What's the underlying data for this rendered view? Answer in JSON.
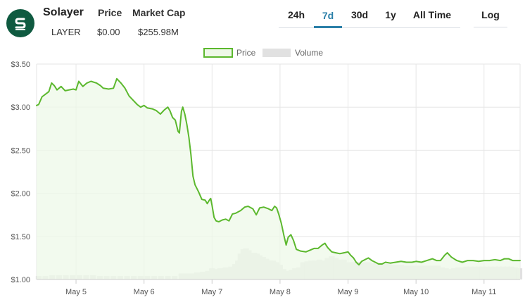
{
  "header": {
    "coin_name": "Solayer",
    "symbol": "LAYER",
    "price_label": "Price",
    "price_value": "$0.00",
    "market_cap_label": "Market Cap",
    "market_cap_value": "$255.98M"
  },
  "tabs": [
    {
      "label": "24h",
      "active": false
    },
    {
      "label": "7d",
      "active": true
    },
    {
      "label": "30d",
      "active": false
    },
    {
      "label": "1y",
      "active": false
    },
    {
      "label": "All Time",
      "active": false
    }
  ],
  "log_label": "Log",
  "colors": {
    "price_line": "#5cb82e",
    "price_fill": "#eef8e8",
    "volume_bar": "#e1e1e1",
    "active_tab": "#2a7fa8",
    "logo_bg": "#0f5a40"
  },
  "chart_data": {
    "type": "line",
    "legend": [
      "Price",
      "Volume"
    ],
    "legend_position": "top-center",
    "grid": true,
    "ylim": [
      1.0,
      3.5
    ],
    "y_ticks": [
      "$1.00",
      "$1.50",
      "$2.00",
      "$2.50",
      "$3.00",
      "$3.50"
    ],
    "x_range": [
      4.42,
      11.53
    ],
    "x_ticks": [
      "May 5",
      "May 6",
      "May 7",
      "May 8",
      "May 9",
      "May 10",
      "May 11"
    ],
    "x_tick_values": [
      5,
      6,
      7,
      8,
      9,
      10,
      11
    ],
    "price": [
      [
        4.42,
        3.02
      ],
      [
        4.45,
        3.03
      ],
      [
        4.5,
        3.12
      ],
      [
        4.55,
        3.15
      ],
      [
        4.6,
        3.18
      ],
      [
        4.64,
        3.28
      ],
      [
        4.68,
        3.25
      ],
      [
        4.72,
        3.2
      ],
      [
        4.78,
        3.24
      ],
      [
        4.84,
        3.19
      ],
      [
        4.9,
        3.2
      ],
      [
        4.96,
        3.21
      ],
      [
        5.0,
        3.2
      ],
      [
        5.04,
        3.3
      ],
      [
        5.1,
        3.24
      ],
      [
        5.16,
        3.28
      ],
      [
        5.22,
        3.3
      ],
      [
        5.3,
        3.28
      ],
      [
        5.36,
        3.25
      ],
      [
        5.4,
        3.22
      ],
      [
        5.48,
        3.21
      ],
      [
        5.55,
        3.22
      ],
      [
        5.6,
        3.33
      ],
      [
        5.66,
        3.28
      ],
      [
        5.72,
        3.22
      ],
      [
        5.78,
        3.13
      ],
      [
        5.84,
        3.08
      ],
      [
        5.9,
        3.03
      ],
      [
        5.95,
        3.0
      ],
      [
        6.0,
        3.02
      ],
      [
        6.05,
        2.99
      ],
      [
        6.12,
        2.98
      ],
      [
        6.18,
        2.96
      ],
      [
        6.24,
        2.92
      ],
      [
        6.3,
        2.97
      ],
      [
        6.35,
        3.0
      ],
      [
        6.38,
        2.96
      ],
      [
        6.42,
        2.88
      ],
      [
        6.46,
        2.85
      ],
      [
        6.5,
        2.72
      ],
      [
        6.52,
        2.7
      ],
      [
        6.55,
        2.95
      ],
      [
        6.57,
        3.0
      ],
      [
        6.6,
        2.92
      ],
      [
        6.63,
        2.8
      ],
      [
        6.66,
        2.65
      ],
      [
        6.69,
        2.45
      ],
      [
        6.72,
        2.2
      ],
      [
        6.75,
        2.1
      ],
      [
        6.8,
        2.02
      ],
      [
        6.85,
        1.93
      ],
      [
        6.9,
        1.92
      ],
      [
        6.93,
        1.88
      ],
      [
        6.96,
        1.92
      ],
      [
        6.98,
        1.94
      ],
      [
        7.0,
        1.86
      ],
      [
        7.03,
        1.72
      ],
      [
        7.06,
        1.68
      ],
      [
        7.1,
        1.67
      ],
      [
        7.15,
        1.69
      ],
      [
        7.2,
        1.7
      ],
      [
        7.25,
        1.68
      ],
      [
        7.3,
        1.76
      ],
      [
        7.35,
        1.77
      ],
      [
        7.42,
        1.8
      ],
      [
        7.48,
        1.84
      ],
      [
        7.53,
        1.85
      ],
      [
        7.6,
        1.82
      ],
      [
        7.65,
        1.75
      ],
      [
        7.7,
        1.83
      ],
      [
        7.76,
        1.84
      ],
      [
        7.83,
        1.82
      ],
      [
        7.88,
        1.8
      ],
      [
        7.92,
        1.85
      ],
      [
        7.95,
        1.83
      ],
      [
        7.98,
        1.76
      ],
      [
        8.02,
        1.65
      ],
      [
        8.06,
        1.5
      ],
      [
        8.09,
        1.4
      ],
      [
        8.12,
        1.49
      ],
      [
        8.16,
        1.52
      ],
      [
        8.2,
        1.45
      ],
      [
        8.24,
        1.35
      ],
      [
        8.3,
        1.33
      ],
      [
        8.38,
        1.32
      ],
      [
        8.44,
        1.34
      ],
      [
        8.5,
        1.36
      ],
      [
        8.56,
        1.36
      ],
      [
        8.62,
        1.4
      ],
      [
        8.66,
        1.42
      ],
      [
        8.7,
        1.37
      ],
      [
        8.76,
        1.32
      ],
      [
        8.82,
        1.31
      ],
      [
        8.88,
        1.3
      ],
      [
        8.94,
        1.31
      ],
      [
        9.0,
        1.32
      ],
      [
        9.04,
        1.28
      ],
      [
        9.08,
        1.25
      ],
      [
        9.12,
        1.2
      ],
      [
        9.16,
        1.17
      ],
      [
        9.2,
        1.21
      ],
      [
        9.25,
        1.23
      ],
      [
        9.3,
        1.25
      ],
      [
        9.35,
        1.22
      ],
      [
        9.4,
        1.2
      ],
      [
        9.45,
        1.18
      ],
      [
        9.5,
        1.18
      ],
      [
        9.55,
        1.2
      ],
      [
        9.62,
        1.19
      ],
      [
        9.7,
        1.2
      ],
      [
        9.78,
        1.21
      ],
      [
        9.86,
        1.2
      ],
      [
        9.94,
        1.2
      ],
      [
        10.0,
        1.21
      ],
      [
        10.08,
        1.2
      ],
      [
        10.16,
        1.22
      ],
      [
        10.24,
        1.24
      ],
      [
        10.3,
        1.22
      ],
      [
        10.36,
        1.22
      ],
      [
        10.42,
        1.28
      ],
      [
        10.46,
        1.31
      ],
      [
        10.52,
        1.26
      ],
      [
        10.6,
        1.22
      ],
      [
        10.68,
        1.2
      ],
      [
        10.76,
        1.22
      ],
      [
        10.84,
        1.22
      ],
      [
        10.92,
        1.21
      ],
      [
        11.0,
        1.22
      ],
      [
        11.08,
        1.22
      ],
      [
        11.16,
        1.23
      ],
      [
        11.24,
        1.22
      ],
      [
        11.3,
        1.24
      ],
      [
        11.36,
        1.24
      ],
      [
        11.42,
        1.22
      ],
      [
        11.5,
        1.22
      ],
      [
        11.53,
        1.22
      ]
    ],
    "volume_units": "price-axis equivalent (volume axis unlabeled)",
    "volume": [
      [
        4.45,
        1.04
      ],
      [
        4.55,
        1.04
      ],
      [
        4.65,
        1.05
      ],
      [
        4.75,
        1.05
      ],
      [
        4.85,
        1.05
      ],
      [
        4.95,
        1.05
      ],
      [
        5.05,
        1.05
      ],
      [
        5.15,
        1.05
      ],
      [
        5.25,
        1.05
      ],
      [
        5.35,
        1.04
      ],
      [
        5.45,
        1.04
      ],
      [
        5.55,
        1.04
      ],
      [
        5.65,
        1.04
      ],
      [
        5.75,
        1.04
      ],
      [
        5.85,
        1.04
      ],
      [
        5.95,
        1.04
      ],
      [
        6.05,
        1.04
      ],
      [
        6.15,
        1.04
      ],
      [
        6.25,
        1.04
      ],
      [
        6.35,
        1.04
      ],
      [
        6.45,
        1.04
      ],
      [
        6.55,
        1.07
      ],
      [
        6.62,
        1.07
      ],
      [
        6.7,
        1.07
      ],
      [
        6.78,
        1.08
      ],
      [
        6.86,
        1.09
      ],
      [
        6.94,
        1.1
      ],
      [
        7.0,
        1.13
      ],
      [
        7.05,
        1.12
      ],
      [
        7.12,
        1.13
      ],
      [
        7.2,
        1.14
      ],
      [
        7.28,
        1.15
      ],
      [
        7.34,
        1.18
      ],
      [
        7.38,
        1.22
      ],
      [
        7.42,
        1.3
      ],
      [
        7.46,
        1.35
      ],
      [
        7.5,
        1.36
      ],
      [
        7.54,
        1.34
      ],
      [
        7.58,
        1.3
      ],
      [
        7.62,
        1.31
      ],
      [
        7.66,
        1.3
      ],
      [
        7.7,
        1.28
      ],
      [
        7.75,
        1.26
      ],
      [
        7.8,
        1.24
      ],
      [
        7.85,
        1.22
      ],
      [
        7.9,
        1.22
      ],
      [
        7.95,
        1.2
      ],
      [
        8.0,
        1.17
      ],
      [
        8.05,
        1.12
      ],
      [
        8.09,
        1.08
      ],
      [
        8.13,
        1.1
      ],
      [
        8.17,
        1.11
      ],
      [
        8.22,
        1.13
      ],
      [
        8.28,
        1.14
      ],
      [
        8.34,
        1.2
      ],
      [
        8.4,
        1.21
      ],
      [
        8.46,
        1.22
      ],
      [
        8.52,
        1.22
      ],
      [
        8.58,
        1.23
      ],
      [
        8.64,
        1.22
      ],
      [
        8.7,
        1.25
      ],
      [
        8.76,
        1.27
      ],
      [
        8.82,
        1.25
      ],
      [
        8.88,
        1.23
      ],
      [
        8.94,
        1.23
      ],
      [
        9.0,
        1.2
      ],
      [
        9.06,
        1.2
      ],
      [
        9.12,
        1.2
      ],
      [
        9.18,
        1.2
      ],
      [
        9.24,
        1.2
      ],
      [
        9.3,
        1.2
      ],
      [
        9.36,
        1.19
      ],
      [
        9.42,
        1.18
      ],
      [
        9.48,
        1.18
      ],
      [
        9.54,
        1.18
      ],
      [
        9.6,
        1.18
      ],
      [
        9.66,
        1.17
      ],
      [
        9.72,
        1.17
      ],
      [
        9.78,
        1.17
      ],
      [
        9.84,
        1.16
      ],
      [
        9.9,
        1.16
      ],
      [
        9.96,
        1.16
      ],
      [
        10.02,
        1.16
      ],
      [
        10.08,
        1.16
      ],
      [
        10.14,
        1.16
      ],
      [
        10.2,
        1.16
      ],
      [
        10.26,
        1.16
      ],
      [
        10.32,
        1.16
      ],
      [
        10.38,
        1.14
      ],
      [
        10.44,
        1.13
      ],
      [
        10.5,
        1.12
      ],
      [
        10.56,
        1.13
      ],
      [
        10.62,
        1.14
      ],
      [
        10.68,
        1.14
      ],
      [
        10.74,
        1.15
      ],
      [
        10.8,
        1.15
      ],
      [
        10.86,
        1.15
      ],
      [
        10.92,
        1.15
      ],
      [
        10.98,
        1.15
      ],
      [
        11.04,
        1.15
      ],
      [
        11.1,
        1.15
      ],
      [
        11.16,
        1.15
      ],
      [
        11.22,
        1.15
      ],
      [
        11.28,
        1.15
      ],
      [
        11.34,
        1.15
      ],
      [
        11.4,
        1.15
      ],
      [
        11.46,
        1.14
      ],
      [
        11.52,
        1.13
      ]
    ]
  }
}
